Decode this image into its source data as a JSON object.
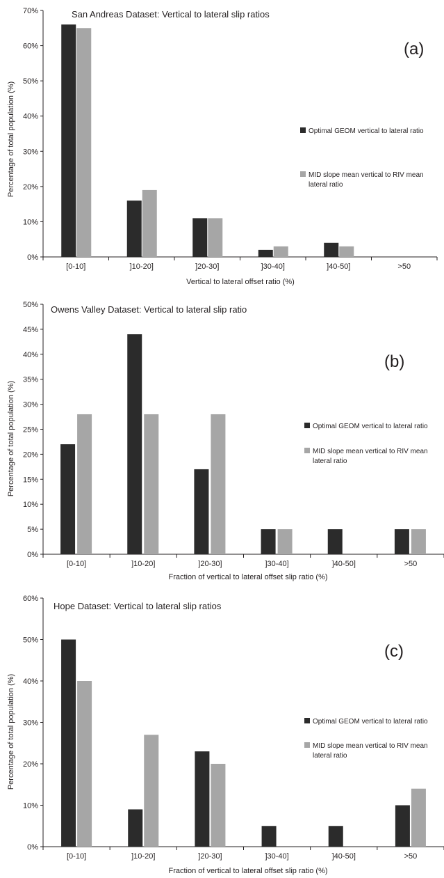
{
  "colors": {
    "dark": "#2b2b2b",
    "light": "#a6a6a6",
    "axis": "#231f20"
  },
  "chart_data": [
    {
      "type": "bar",
      "title": "San Andreas Dataset: Vertical to lateral slip ratios",
      "panel_label": "(a)",
      "xlabel": "Vertical to lateral offset ratio (%)",
      "ylabel": "Percentage of total population (%)",
      "categories": [
        "[0-10]",
        "]10-20]",
        "]20-30]",
        "]30-40]",
        "]40-50]",
        ">50"
      ],
      "y_ticks": [
        "0%",
        "10%",
        "20%",
        "30%",
        "40%",
        "50%",
        "60%",
        "70%"
      ],
      "ylim": [
        0,
        70
      ],
      "grid": false,
      "legend_position": "right",
      "series": [
        {
          "name": "Optimal GEOM vertical to lateral ratio",
          "color": "#2b2b2b",
          "values": [
            66,
            16,
            11,
            2,
            4,
            0
          ]
        },
        {
          "name": "MID slope mean vertical to RIV mean lateral ratio",
          "color": "#a6a6a6",
          "values": [
            65,
            19,
            11,
            3,
            3,
            0
          ]
        }
      ]
    },
    {
      "type": "bar",
      "title": "Owens Valley Dataset:  Vertical to lateral slip ratio",
      "panel_label": "(b)",
      "xlabel": "Fraction of vertical to lateral offset slip ratio (%)",
      "ylabel": "Percentage of total population (%)",
      "categories": [
        "[0-10]",
        "]10-20]",
        "]20-30]",
        "]30-40]",
        "]40-50]",
        ">50"
      ],
      "y_ticks": [
        "0%",
        "5%",
        "10%",
        "15%",
        "20%",
        "25%",
        "30%",
        "35%",
        "40%",
        "45%",
        "50%"
      ],
      "ylim": [
        0,
        50
      ],
      "grid": false,
      "legend_position": "right",
      "series": [
        {
          "name": "Optimal GEOM vertical to lateral ratio",
          "color": "#2b2b2b",
          "values": [
            22,
            44,
            17,
            5,
            5,
            5
          ]
        },
        {
          "name": "MID slope mean vertical to RIV mean lateral ratio",
          "color": "#a6a6a6",
          "values": [
            28,
            28,
            28,
            5,
            0,
            5
          ]
        }
      ]
    },
    {
      "type": "bar",
      "title": "Hope Dataset: Vertical to lateral slip ratios",
      "panel_label": "(c)",
      "xlabel": "Fraction of vertical to lateral offset slip ratio (%)",
      "ylabel": "Percentage of total population (%)",
      "categories": [
        "[0-10]",
        "]10-20]",
        "]20-30]",
        "]30-40]",
        "]40-50]",
        ">50"
      ],
      "y_ticks": [
        "0%",
        "10%",
        "20%",
        "30%",
        "40%",
        "50%",
        "60%"
      ],
      "ylim": [
        0,
        60
      ],
      "grid": false,
      "legend_position": "right",
      "series": [
        {
          "name": "Optimal GEOM vertical to lateral ratio",
          "color": "#2b2b2b",
          "values": [
            50,
            9,
            23,
            5,
            5,
            10
          ]
        },
        {
          "name": "MID slope mean vertical to RIV mean lateral ratio",
          "color": "#a6a6a6",
          "values": [
            40,
            27,
            20,
            0,
            0,
            14
          ]
        }
      ]
    }
  ]
}
